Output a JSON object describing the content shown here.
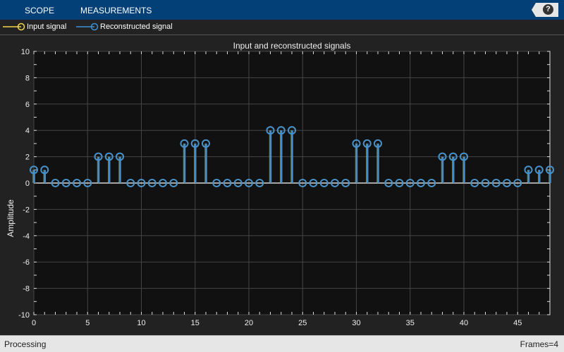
{
  "toolbar": {
    "tabs": [
      "SCOPE",
      "MEASUREMENTS"
    ],
    "help_label": "?"
  },
  "legend": [
    {
      "label": "Input signal",
      "color": "#f2d64b"
    },
    {
      "label": "Reconstructed signal",
      "color": "#3c8fd6"
    }
  ],
  "status": {
    "left": "Processing",
    "right": "Frames=4"
  },
  "chart_data": {
    "type": "stem",
    "title": "Input and reconstructed signals",
    "xlabel": "",
    "ylabel": "Amplitude",
    "xlim": [
      0,
      48
    ],
    "ylim": [
      -10,
      10
    ],
    "xticks": [
      0,
      5,
      10,
      15,
      20,
      25,
      30,
      35,
      40,
      45
    ],
    "yticks": [
      -10,
      -8,
      -6,
      -4,
      -2,
      0,
      2,
      4,
      6,
      8,
      10
    ],
    "grid": true,
    "legend": "top-left",
    "x": [
      0,
      1,
      2,
      3,
      4,
      5,
      6,
      7,
      8,
      9,
      10,
      11,
      12,
      13,
      14,
      15,
      16,
      17,
      18,
      19,
      20,
      21,
      22,
      23,
      24,
      25,
      26,
      27,
      28,
      29,
      30,
      31,
      32,
      33,
      34,
      35,
      36,
      37,
      38,
      39,
      40,
      41,
      42,
      43,
      44,
      45,
      46,
      47,
      48
    ],
    "series": [
      {
        "name": "Input signal",
        "color": "#f2d64b",
        "values": [
          1,
          1,
          0,
          0,
          0,
          0,
          2,
          2,
          2,
          0,
          0,
          0,
          0,
          0,
          3,
          3,
          3,
          0,
          0,
          0,
          0,
          0,
          4,
          4,
          4,
          0,
          0,
          0,
          0,
          0,
          3,
          3,
          3,
          0,
          0,
          0,
          0,
          0,
          2,
          2,
          2,
          0,
          0,
          0,
          0,
          0,
          1,
          1,
          1
        ]
      },
      {
        "name": "Reconstructed signal",
        "color": "#3c8fd6",
        "values": [
          1,
          1,
          0,
          0,
          0,
          0,
          2,
          2,
          2,
          0,
          0,
          0,
          0,
          0,
          3,
          3,
          3,
          0,
          0,
          0,
          0,
          0,
          4,
          4,
          4,
          0,
          0,
          0,
          0,
          0,
          3,
          3,
          3,
          0,
          0,
          0,
          0,
          0,
          2,
          2,
          2,
          0,
          0,
          0,
          0,
          0,
          1,
          1,
          1
        ]
      }
    ]
  }
}
